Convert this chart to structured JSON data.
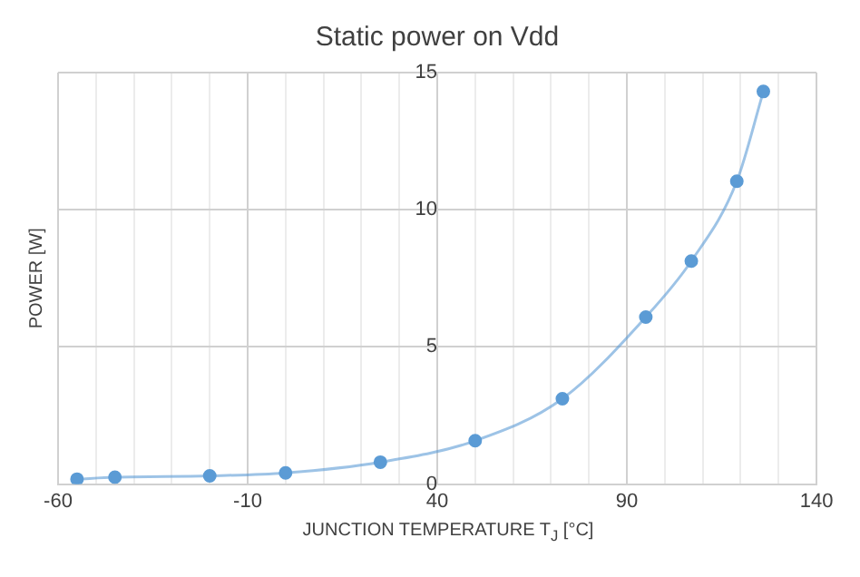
{
  "chart_data": {
    "type": "line",
    "title": "Static power on Vdd",
    "xlabel": "JUNCTION TEMPERATURE T$_{J}$ [°C]",
    "ylabel": "POWER [W]",
    "x": [
      -55,
      -45,
      -20,
      0,
      25,
      50,
      73,
      95,
      107,
      119,
      126
    ],
    "series": [
      {
        "color": "#5b9bd5",
        "values": [
          0.18,
          0.25,
          0.3,
          0.41,
          0.8,
          1.58,
          3.11,
          6.09,
          8.13,
          11.04,
          14.31
        ]
      }
    ],
    "xlim": [
      -60,
      140
    ],
    "xticks": [
      -60,
      {
        "value": -50,
        "label": null
      },
      {
        "value": -40,
        "label": null
      },
      {
        "value": -30,
        "label": null
      },
      {
        "value": -20,
        "label": null
      },
      -10,
      {
        "value": 0,
        "label": null
      },
      {
        "value": 10,
        "label": null
      },
      {
        "value": 20,
        "label": null
      },
      {
        "value": 30,
        "label": null
      },
      40,
      {
        "value": 50,
        "label": null
      },
      {
        "value": 60,
        "label": null
      },
      {
        "value": 70,
        "label": null
      },
      {
        "value": 80,
        "label": null
      },
      90,
      {
        "value": 100,
        "label": null
      },
      {
        "value": 110,
        "label": null
      },
      {
        "value": 120,
        "label": null
      },
      {
        "value": 130,
        "label": null
      },
      140
    ],
    "ylim": [
      0,
      15
    ],
    "yticks": [
      0,
      5,
      10,
      15
    ],
    "grid": true,
    "legend": false,
    "marker": "circle",
    "line_style": "solid"
  }
}
